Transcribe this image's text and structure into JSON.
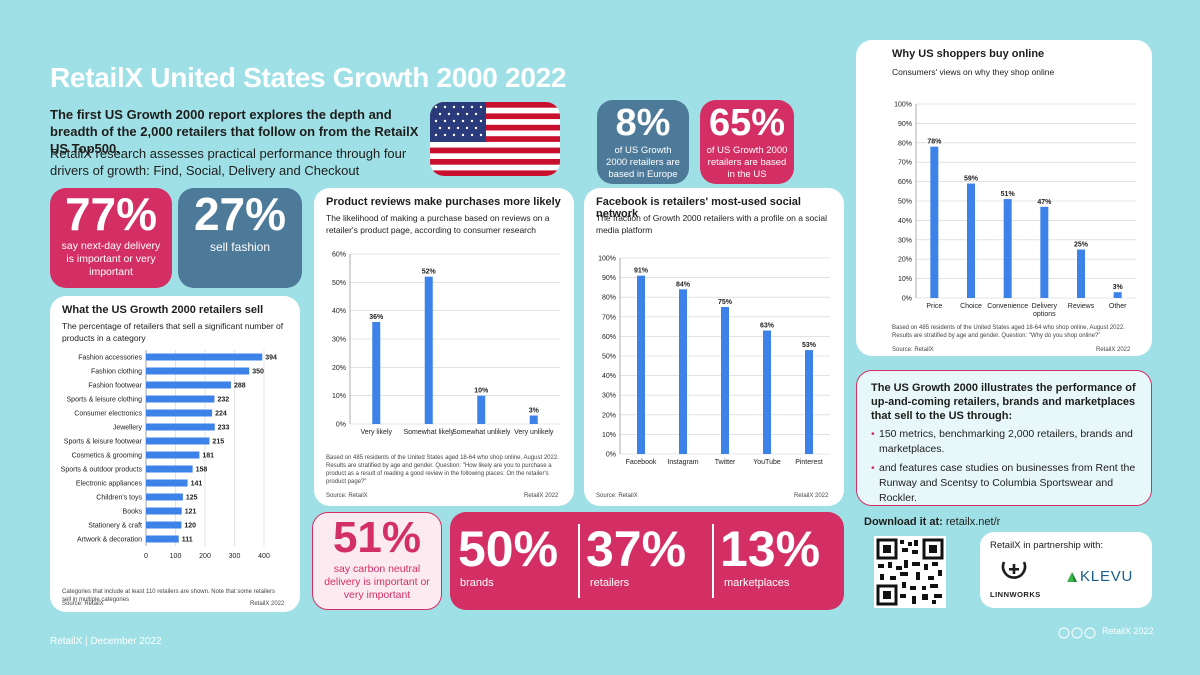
{
  "title": "RetailX United States Growth 2000 2022",
  "intro_bold": "The first US Growth 2000 report explores the depth and breadth of the 2,000 retailers that follow on from the RetailX US Top500.",
  "intro": "RetailX research assesses practical performance through four drivers of growth: Find, Social, Delivery and Checkout",
  "stats": {
    "europe": {
      "value": "8%",
      "text": "of US Growth 2000 retailers are based in Europe"
    },
    "us": {
      "value": "65%",
      "text": "of US Growth 2000 retailers are based in the US"
    },
    "nextday": {
      "value": "77%",
      "text": "say next-day delivery is important or very important"
    },
    "fashion": {
      "value": "27%",
      "text": "sell fashion"
    },
    "carbon": {
      "value": "51%",
      "text": "say carbon neutral delivery is important or very important"
    },
    "brands": {
      "value": "50%",
      "text": "brands"
    },
    "retailers": {
      "value": "37%",
      "text": "retailers"
    },
    "marketplaces": {
      "value": "13%",
      "text": "marketplaces"
    }
  },
  "colors": {
    "pink": "#d42f64",
    "blue": "#4d7a99",
    "bar": "#3d82e8",
    "background": "#9fe0e6"
  },
  "flag_icon": "us-flag-icon",
  "chart_data": [
    {
      "type": "bar",
      "orientation": "horizontal",
      "title": "What the US Growth 2000 retailers sell",
      "subtitle": "The percentage of retailers that sell a significant number of products in a category",
      "categories": [
        "Fashion accessories",
        "Fashion clothing",
        "Fashion footwear",
        "Sports & leisure clothing",
        "Consumer electronics",
        "Jewellery",
        "Sports & leisure footwear",
        "Cosmetics & grooming",
        "Sports & outdoor products",
        "Electronic appliances",
        "Children's toys",
        "Books",
        "Stationery & craft",
        "Artwork & decoration"
      ],
      "values": [
        394,
        350,
        288,
        232,
        224,
        233,
        215,
        181,
        158,
        141,
        125,
        121,
        120,
        111
      ],
      "xlim": [
        0,
        400
      ],
      "xticks": [
        "0",
        "100",
        "200",
        "300",
        "400"
      ],
      "note": "Categories that include at least 110 retailers are shown. Note that some retailers sell in multiple categories",
      "source": "Source: RetailX",
      "credit": "RetailX 2022"
    },
    {
      "type": "bar",
      "title": "Product reviews make purchases more likely",
      "subtitle": "The likelihood of making a purchase based on reviews on a retailer's product page, according to consumer research",
      "categories": [
        "Very likely",
        "Somewhat likely",
        "Somewhat unlikely",
        "Very unlikely"
      ],
      "values": [
        36,
        52,
        10,
        3
      ],
      "ylim": [
        0,
        60
      ],
      "yticks": [
        "0%",
        "10%",
        "20%",
        "30%",
        "40%",
        "50%",
        "60%"
      ],
      "labels": [
        "36%",
        "52%",
        "10%",
        "3%"
      ],
      "note": "Based on 485 residents of the United States aged 18-64 who shop online, August 2022. Results are stratified by age and gender. Question: \"How likely are you to purchase a product as a result of reading a good review in the following places: On the retailer's product page?\"",
      "source": "Source: RetailX",
      "credit": "RetailX 2022"
    },
    {
      "type": "bar",
      "title": "Facebook is retailers' most-used social network",
      "subtitle": "The fraction of Growth 2000 retailers with a profile on a social media platform",
      "categories": [
        "Facebook",
        "Instagram",
        "Twitter",
        "YouTube",
        "Pinterest"
      ],
      "values": [
        91,
        84,
        75,
        63,
        53
      ],
      "ylim": [
        0,
        100
      ],
      "yticks": [
        "0%",
        "10%",
        "20%",
        "30%",
        "40%",
        "50%",
        "60%",
        "70%",
        "80%",
        "90%",
        "100%"
      ],
      "labels": [
        "91%",
        "84%",
        "75%",
        "63%",
        "53%"
      ],
      "source": "Source: RetailX",
      "credit": "RetailX 2022"
    },
    {
      "type": "bar",
      "title": "Why US shoppers buy online",
      "subtitle": "Consumers' views on why they shop online",
      "categories": [
        "Price",
        "Choice",
        "Convenience",
        "Delivery options",
        "Reviews",
        "Other"
      ],
      "values": [
        78,
        59,
        51,
        47,
        25,
        3
      ],
      "ylim": [
        0,
        100
      ],
      "yticks": [
        "0%",
        "10%",
        "20%",
        "30%",
        "40%",
        "50%",
        "60%",
        "70%",
        "80%",
        "90%",
        "100%"
      ],
      "labels": [
        "78%",
        "59%",
        "51%",
        "47%",
        "25%",
        "3%"
      ],
      "note": "Based on 485 residents of the United States aged 18-64 who shop online, August 2022. Results are stratified by age and gender. Question: \"Why do you shop online?\"",
      "source": "Source: RetailX",
      "credit": "RetailX 2022"
    }
  ],
  "info": {
    "title": "The US Growth 2000 illustrates the performance of up-and-coming retailers, brands and marketplaces that sell to the US through:",
    "bullets": [
      "150 metrics, benchmarking 2,000 retailers, brands and marketplaces.",
      "and features case studies on businesses from Rent the Runway and Scentsy to Columbia Sportswear and Rockler."
    ]
  },
  "download": {
    "label": "Download it at:",
    "url": "retailx.net/r"
  },
  "partners": {
    "label": "RetailX in partnership with:",
    "linnworks": "LINNWORKS",
    "klevu": "KLEVU"
  },
  "footer": {
    "left": "RetailX | December 2022",
    "right": "RetailX 2022"
  }
}
